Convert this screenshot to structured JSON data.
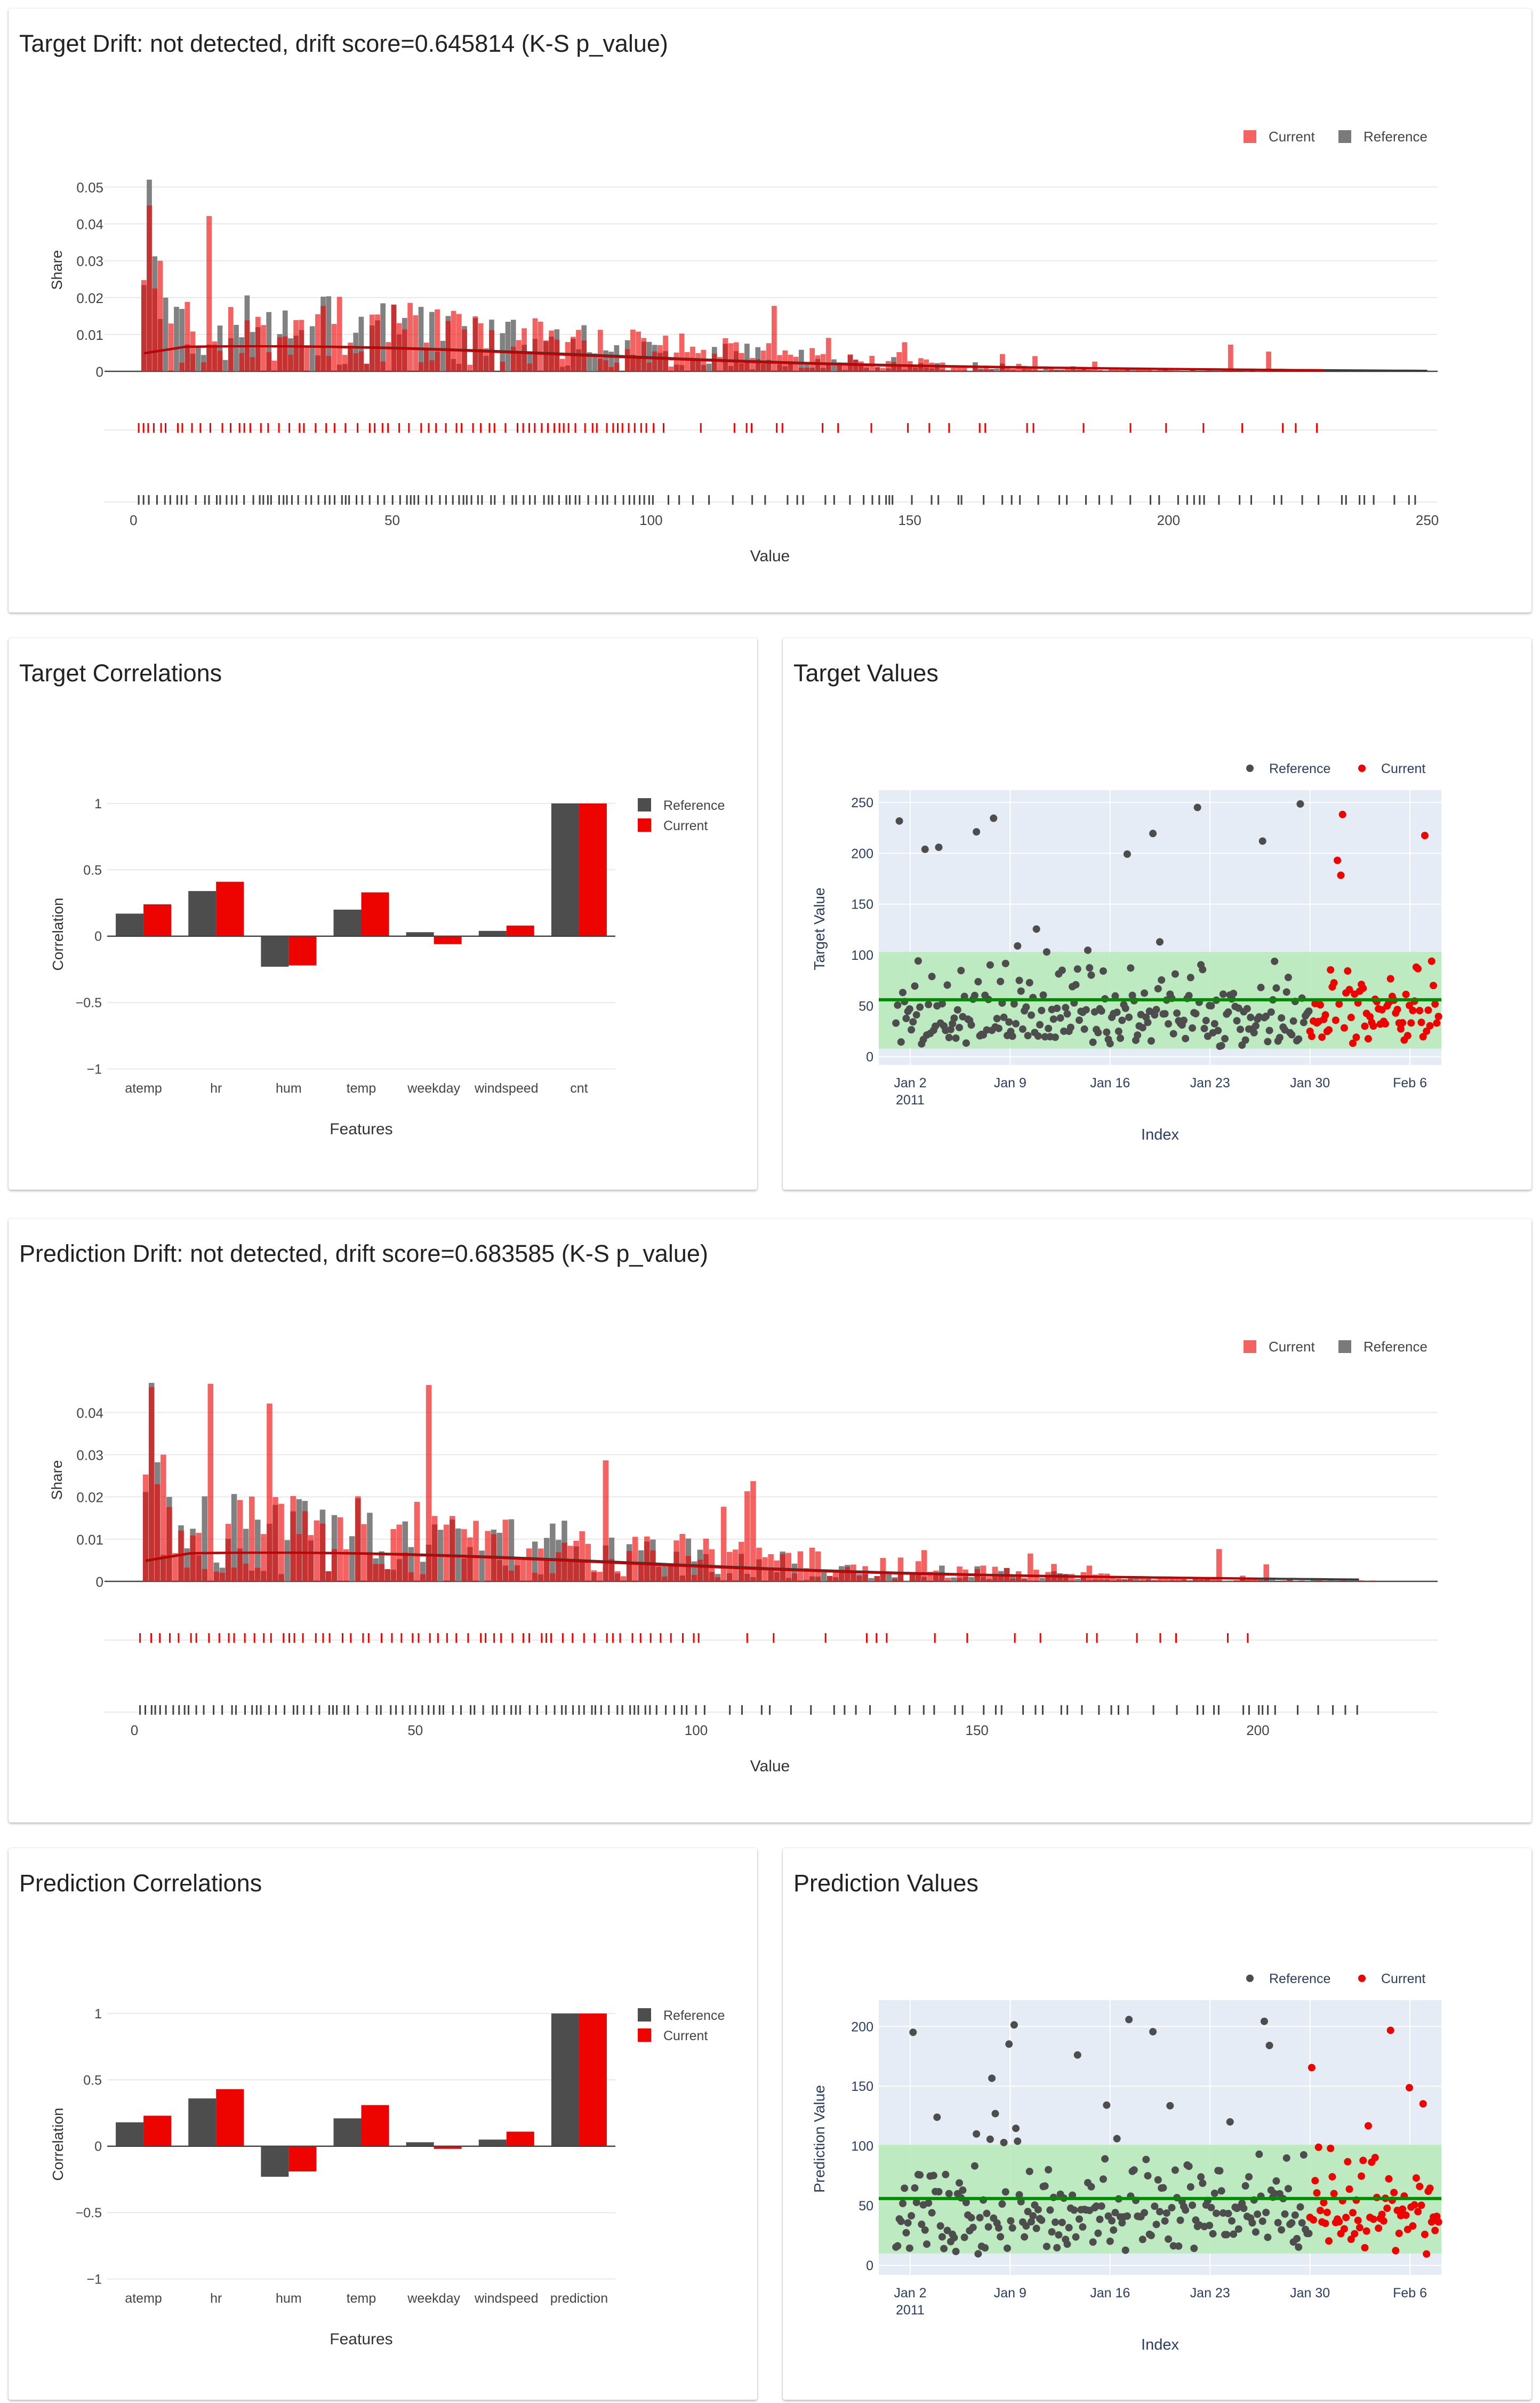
{
  "colors": {
    "reference": "#4d4d4d",
    "current": "#ed0400",
    "grid": "#e9e9e9",
    "plot_bg": "#e5ecf6",
    "band": "#b6eab6",
    "mean_line": "#038c03",
    "axis_title_blue": "#2a3f5f"
  },
  "target_drift": {
    "title": "Target Drift: not detected, drift score=0.645814 (K-S p_value)",
    "chart_data": {
      "type": "histogram",
      "xlabel": "Value",
      "ylabel": "Share",
      "xlim": [
        -2,
        252
      ],
      "ylim": [
        0,
        0.055
      ],
      "x_ticks": [
        "0",
        "50",
        "100",
        "150",
        "200",
        "250"
      ],
      "x_tick_values": [
        0,
        50,
        100,
        150,
        200,
        250
      ],
      "y_ticks": [
        "0",
        "0.01",
        "0.02",
        "0.03",
        "0.04",
        "0.05"
      ],
      "y_tick_values": [
        0,
        0.01,
        0.02,
        0.03,
        0.04,
        0.05
      ],
      "legend": [
        "Current",
        "Reference"
      ],
      "legend_position": "top-right",
      "max_value": 250,
      "seed": 11,
      "reference_peak": 0.052,
      "current_peak": 0.045,
      "current_extra_max": 230
    }
  },
  "target_correlations": {
    "title": "Target Correlations",
    "chart_data": {
      "type": "bar",
      "categories": [
        "atemp",
        "hr",
        "hum",
        "temp",
        "weekday",
        "windspeed",
        "cnt"
      ],
      "series": [
        {
          "name": "Reference",
          "values": [
            0.17,
            0.34,
            -0.23,
            0.2,
            0.03,
            0.04,
            1.0
          ]
        },
        {
          "name": "Current",
          "values": [
            0.24,
            0.41,
            -0.22,
            0.33,
            -0.06,
            0.08,
            1.0
          ]
        }
      ],
      "xlabel": "Features",
      "ylabel": "Correlation",
      "ylim": [
        -1.05,
        1.1
      ],
      "y_ticks": [
        "−1",
        "−0.5",
        "0",
        "0.5",
        "1"
      ],
      "y_tick_values": [
        -1,
        -0.5,
        0,
        0.5,
        1
      ],
      "legend_position": "top-right"
    }
  },
  "target_values": {
    "title": "Target Values",
    "chart_data": {
      "type": "scatter",
      "xlabel": "Index",
      "ylabel": "Target Value",
      "x_ticks": [
        "Jan 2",
        "Jan 9",
        "Jan 16",
        "Jan 23",
        "Jan 30",
        "Feb 6"
      ],
      "x_tick_year": "2011",
      "x_range_days": [
        -1.2,
        38.2
      ],
      "x_tick_days": [
        1,
        8,
        15,
        22,
        29,
        36
      ],
      "y_ticks": [
        "0",
        "50",
        "100",
        "150",
        "200",
        "250"
      ],
      "y_tick_values": [
        0,
        50,
        100,
        150,
        200,
        250
      ],
      "ylim": [
        -8,
        262
      ],
      "mean": 56,
      "band": [
        8,
        103
      ],
      "reference_days": [
        0,
        29
      ],
      "current_days": [
        29,
        38
      ],
      "legend": [
        "Reference",
        "Current"
      ],
      "legend_position": "top-right",
      "seed": 5,
      "max_value": 250
    }
  },
  "prediction_drift": {
    "title": "Prediction Drift: not detected, drift score=0.683585 (K-S p_value)",
    "chart_data": {
      "type": "histogram",
      "xlabel": "Value",
      "ylabel": "Share",
      "xlim": [
        -2,
        232
      ],
      "ylim": [
        0,
        0.048
      ],
      "x_ticks": [
        "0",
        "50",
        "100",
        "150",
        "200"
      ],
      "x_tick_values": [
        0,
        50,
        100,
        150,
        200
      ],
      "y_ticks": [
        "0",
        "0.01",
        "0.02",
        "0.03",
        "0.04"
      ],
      "y_tick_values": [
        0,
        0.01,
        0.02,
        0.03,
        0.04
      ],
      "legend": [
        "Current",
        "Reference"
      ],
      "legend_position": "top-right",
      "max_value": 219,
      "seed": 23,
      "reference_peak": 0.047,
      "current_peak": 0.046,
      "current_extra_max": 200
    }
  },
  "prediction_correlations": {
    "title": "Prediction Correlations",
    "chart_data": {
      "type": "bar",
      "categories": [
        "atemp",
        "hr",
        "hum",
        "temp",
        "weekday",
        "windspeed",
        "prediction"
      ],
      "series": [
        {
          "name": "Reference",
          "values": [
            0.18,
            0.36,
            -0.23,
            0.21,
            0.03,
            0.05,
            1.0
          ]
        },
        {
          "name": "Current",
          "values": [
            0.23,
            0.43,
            -0.19,
            0.31,
            -0.02,
            0.11,
            1.0
          ]
        }
      ],
      "xlabel": "Features",
      "ylabel": "Correlation",
      "ylim": [
        -1.05,
        1.1
      ],
      "y_ticks": [
        "−1",
        "−0.5",
        "0",
        "0.5",
        "1"
      ],
      "y_tick_values": [
        -1,
        -0.5,
        0,
        0.5,
        1
      ],
      "legend_position": "top-right"
    }
  },
  "prediction_values": {
    "title": "Prediction Values",
    "chart_data": {
      "type": "scatter",
      "xlabel": "Index",
      "ylabel": "Prediction Value",
      "x_ticks": [
        "Jan 2",
        "Jan 9",
        "Jan 16",
        "Jan 23",
        "Jan 30",
        "Feb 6"
      ],
      "x_tick_year": "2011",
      "x_range_days": [
        -1.2,
        38.2
      ],
      "x_tick_days": [
        1,
        8,
        15,
        22,
        29,
        36
      ],
      "y_ticks": [
        "0",
        "50",
        "100",
        "150",
        "200"
      ],
      "y_tick_values": [
        0,
        50,
        100,
        150,
        200
      ],
      "ylim": [
        -8,
        222
      ],
      "mean": 56,
      "band": [
        10,
        101
      ],
      "reference_days": [
        0,
        29
      ],
      "current_days": [
        29,
        38
      ],
      "legend": [
        "Reference",
        "Current"
      ],
      "legend_position": "top-right",
      "seed": 9,
      "max_value": 212
    }
  }
}
